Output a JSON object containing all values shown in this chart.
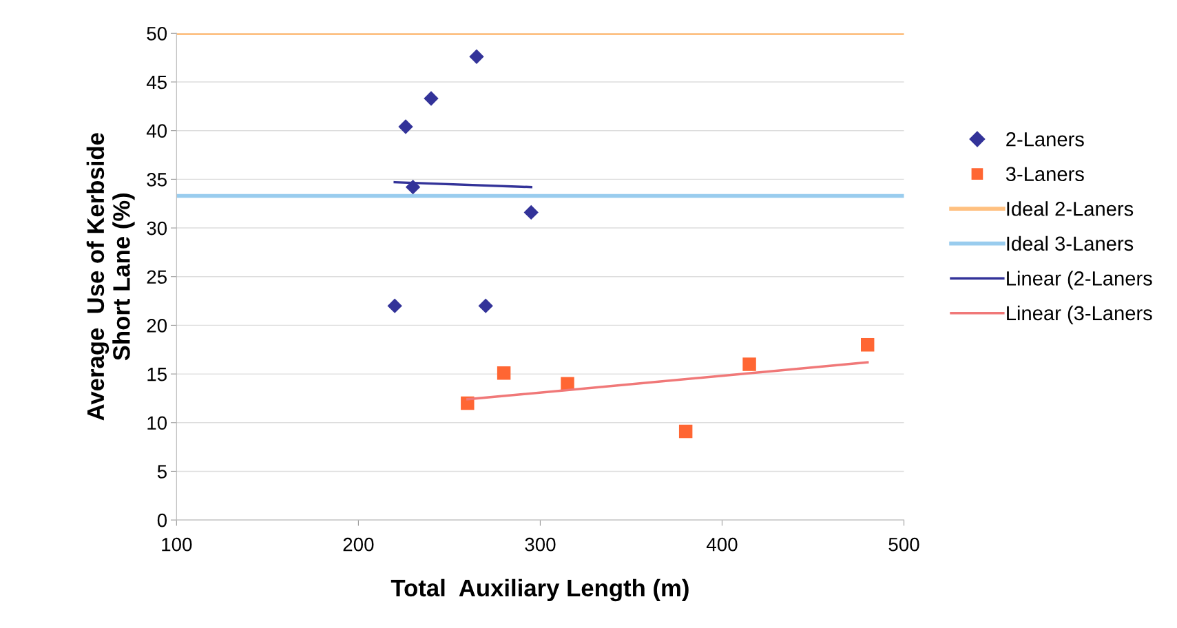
{
  "chart_data": {
    "type": "scatter",
    "xlabel": "Total  Auxiliary Length (m)",
    "ylabel": "Average  Use of Kerbside\nShort Lane (%)",
    "xlim": [
      100,
      500
    ],
    "xticks": [
      100,
      200,
      300,
      400,
      500
    ],
    "ylim": [
      0,
      50
    ],
    "yticks": [
      0,
      5,
      10,
      15,
      20,
      25,
      30,
      35,
      40,
      45,
      50
    ],
    "grid": "y",
    "legend": "right",
    "series": [
      {
        "name": "2-Laners",
        "marker": "diamond",
        "color": "#333399",
        "x": [
          220,
          226,
          240,
          265,
          230,
          295,
          270
        ],
        "values": [
          22,
          40.4,
          43.3,
          47.6,
          34.2,
          31.6,
          22
        ]
      },
      {
        "name": "3-Laners",
        "marker": "square",
        "color": "#ff6633",
        "x": [
          260,
          280,
          315,
          380,
          415,
          480
        ],
        "values": [
          12,
          15.1,
          14,
          9.1,
          16,
          18
        ]
      },
      {
        "name": "Linear (2-Laners",
        "type": "line",
        "color": "#333399",
        "x": [
          220,
          295
        ],
        "values": [
          34.7,
          34.2
        ]
      },
      {
        "name": "Linear (3-Laners",
        "type": "line",
        "color": "#f07878",
        "x": [
          260,
          480
        ],
        "values": [
          12.4,
          16.2
        ]
      }
    ],
    "ref_lines": [
      {
        "axis": "y",
        "value": 50,
        "label": "Ideal 2-Laners",
        "color": "#ffc080"
      },
      {
        "axis": "y",
        "value": 33.3,
        "label": "Ideal 3-Laners",
        "color": "#99ccee"
      }
    ]
  }
}
